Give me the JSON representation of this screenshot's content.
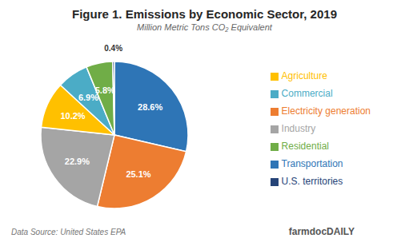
{
  "chart_data": {
    "type": "pie",
    "title": "Figure 1. Emissions by Economic Sector, 2019",
    "subtitle": "Million Metric Tons CO₂ Equivalent",
    "categories": [
      "Transportation",
      "Electricity generation",
      "Industry",
      "Agriculture",
      "Commercial",
      "Residential",
      "U.S. territories"
    ],
    "values": [
      28.6,
      25.1,
      22.9,
      10.2,
      6.9,
      5.8,
      0.4
    ],
    "value_labels": [
      "28.6%",
      "25.1%",
      "22.9%",
      "10.2%",
      "6.9%",
      "5.8%",
      "0.4%"
    ],
    "data_labels": true,
    "colors": [
      "#2E75B6",
      "#ED7D31",
      "#A5A5A5",
      "#FFC000",
      "#4BACC6",
      "#70AD47",
      "#264478"
    ],
    "legend": "right",
    "annotations": [
      "Data Source: United States EPA",
      "farmdoc",
      "DAILY"
    ]
  }
}
